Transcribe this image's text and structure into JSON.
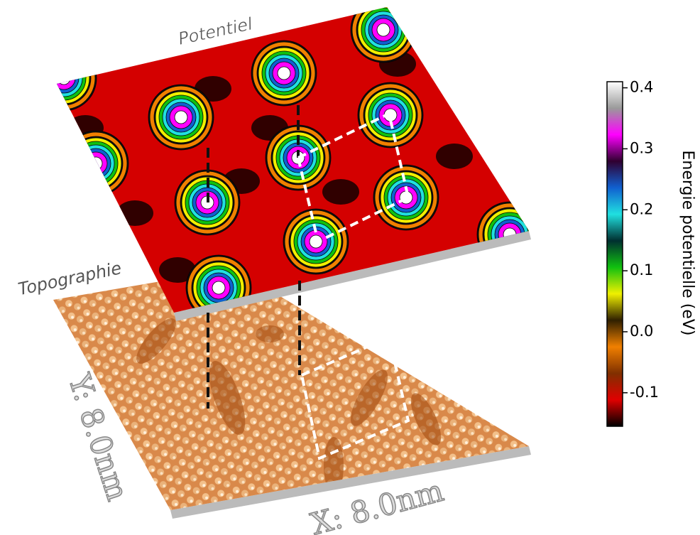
{
  "labels": {
    "potential": "Potentiel",
    "topography": "Topographie",
    "y_axis": "Y: 8.0nm",
    "x_axis": "X: 8.0nm"
  },
  "colorbar": {
    "title": "Energie potentielle (eV)",
    "clim": [
      -0.155,
      0.41
    ],
    "ticks": [
      {
        "value": 0.4,
        "label": "0.4"
      },
      {
        "value": 0.3,
        "label": "0.3"
      },
      {
        "value": 0.2,
        "label": "0.2"
      },
      {
        "value": 0.1,
        "label": "0.1"
      },
      {
        "value": 0,
        "label": "0.0"
      },
      {
        "value": -0.1,
        "label": "-0.1"
      }
    ],
    "colormap": [
      "#ffffff",
      "#9a9a9a",
      "#ff00ff",
      "#300030",
      "#1060d0",
      "#20e0e0",
      "#003030",
      "#10c010",
      "#f0f000",
      "#302000",
      "#f08000",
      "#803000",
      "#e00000",
      "#000000"
    ]
  }
}
